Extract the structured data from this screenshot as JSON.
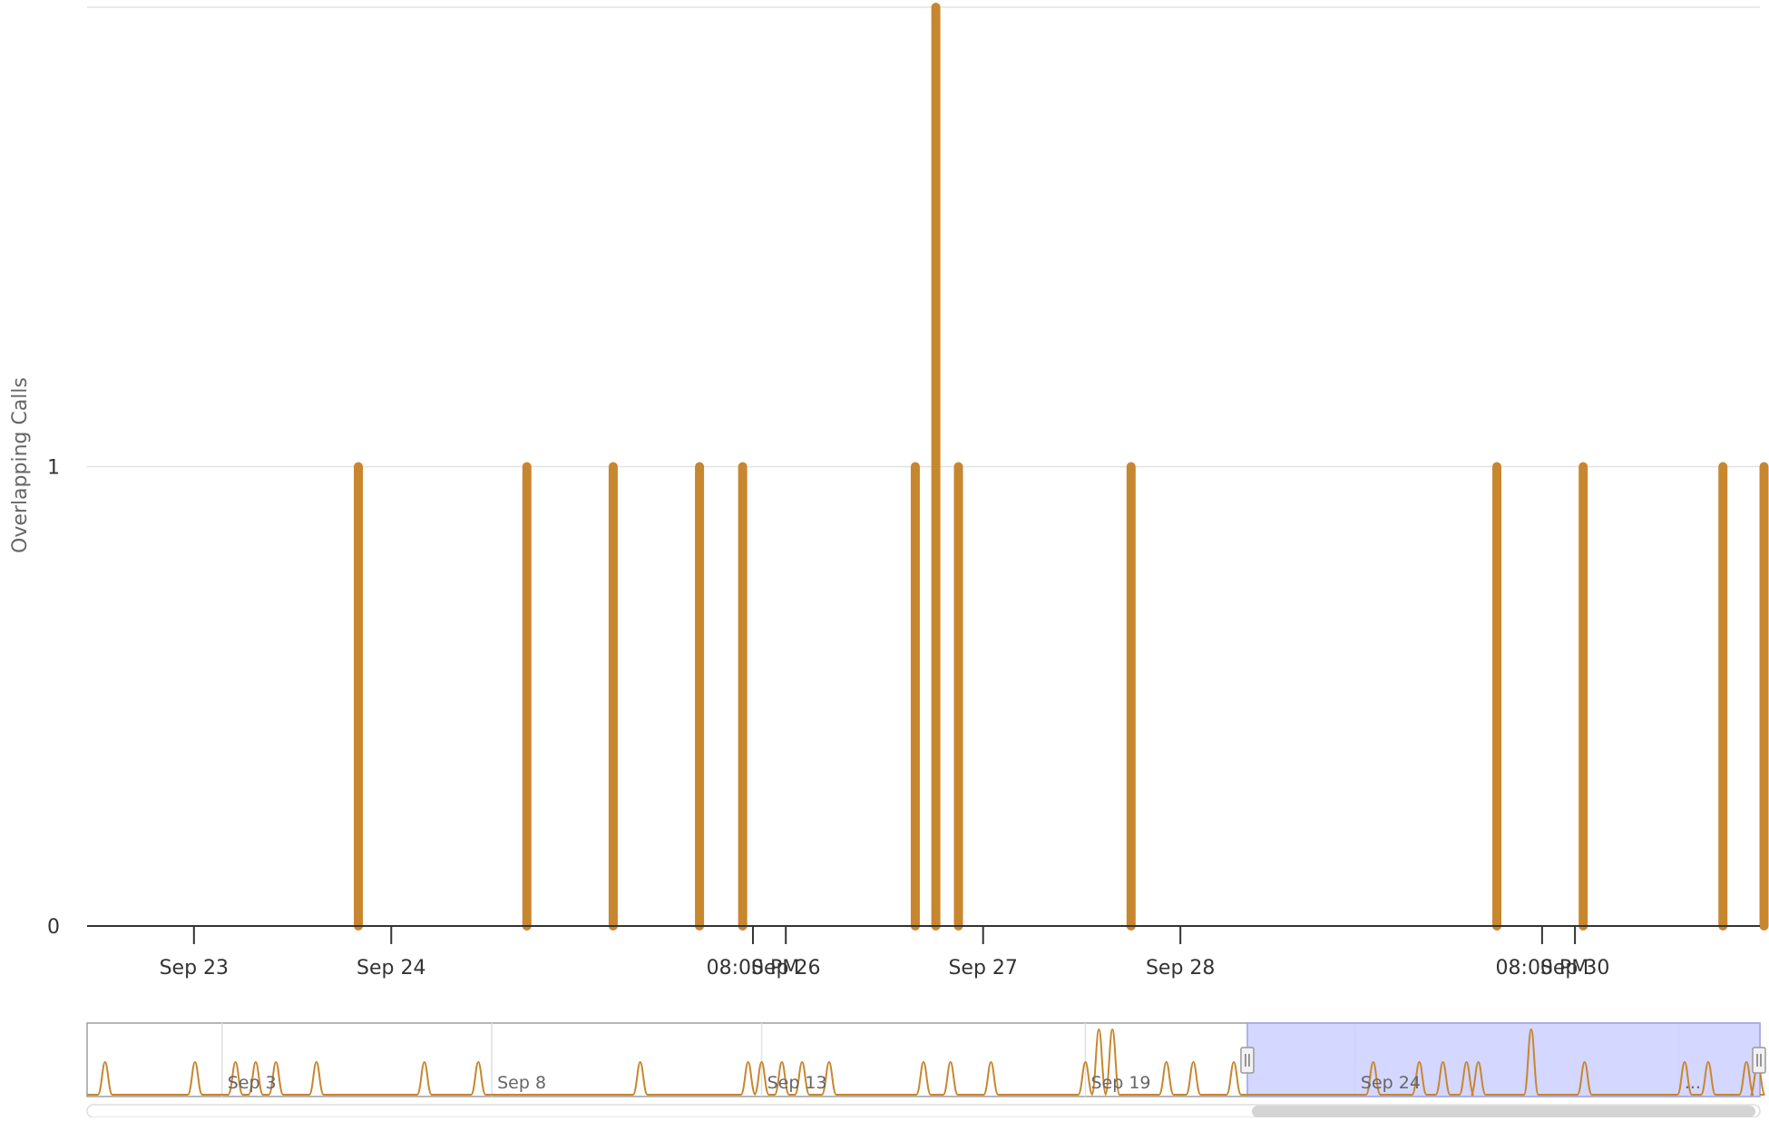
{
  "chart_data": {
    "type": "bar",
    "title": "",
    "xlabel": "",
    "ylabel": "Overlapping Calls",
    "ylim": [
      0,
      2
    ],
    "yticks": [
      0,
      1
    ],
    "grid": true,
    "color": "#c8862e",
    "xlim": [
      "2024-09-22T11:00",
      "2024-09-30T22:30"
    ],
    "xtick_labels": [
      {
        "at": "2024-09-23T00:00",
        "label": "Sep 23"
      },
      {
        "at": "2024-09-24T00:00",
        "label": "Sep 24"
      },
      {
        "at": "2024-09-25T20:00",
        "label": "08:00 PM"
      },
      {
        "at": "2024-09-26T00:00",
        "label": "Sep 26"
      },
      {
        "at": "2024-09-27T00:00",
        "label": "Sep 27"
      },
      {
        "at": "2024-09-28T00:00",
        "label": "Sep 28"
      },
      {
        "at": "2024-09-29T20:00",
        "label": "08:00 PM"
      },
      {
        "at": "2024-09-30T00:00",
        "label": "Sep 30"
      }
    ],
    "points": [
      {
        "x": "2024-09-23T20:00",
        "y": 1
      },
      {
        "x": "2024-09-24T16:30",
        "y": 1
      },
      {
        "x": "2024-09-25T03:00",
        "y": 1
      },
      {
        "x": "2024-09-25T13:30",
        "y": 1
      },
      {
        "x": "2024-09-25T18:45",
        "y": 1
      },
      {
        "x": "2024-09-26T15:45",
        "y": 1
      },
      {
        "x": "2024-09-26T18:15",
        "y": 2
      },
      {
        "x": "2024-09-26T21:00",
        "y": 1
      },
      {
        "x": "2024-09-27T18:00",
        "y": 1
      },
      {
        "x": "2024-09-29T14:30",
        "y": 1
      },
      {
        "x": "2024-09-30T01:00",
        "y": 1
      },
      {
        "x": "2024-09-30T18:00",
        "y": 1
      },
      {
        "x": "2024-09-30T23:00",
        "y": 1
      }
    ],
    "navigator": {
      "xlim": [
        "2024-08-31T00:00",
        "2024-09-30T23:59"
      ],
      "labels": [
        {
          "at": "2024-09-02T12:00",
          "label": "Sep 3"
        },
        {
          "at": "2024-09-07T12:00",
          "label": "Sep 8"
        },
        {
          "at": "2024-09-12T12:00",
          "label": "Sep 13"
        },
        {
          "at": "2024-09-18T12:00",
          "label": "Sep 19"
        },
        {
          "at": "2024-09-23T12:00",
          "label": "Sep 24"
        },
        {
          "at": "2024-09-29T12:00",
          "label": "..."
        }
      ],
      "selected_range": [
        "2024-09-21T12:00",
        "2024-09-30T23:59"
      ],
      "selection_color": "#ccd0ff",
      "peaks": [
        {
          "x": "2024-08-31T08:00",
          "y": 1
        },
        {
          "x": "2024-09-02T00:00",
          "y": 1
        },
        {
          "x": "2024-09-02T18:00",
          "y": 1
        },
        {
          "x": "2024-09-03T03:00",
          "y": 1
        },
        {
          "x": "2024-09-03T12:00",
          "y": 1
        },
        {
          "x": "2024-09-04T06:00",
          "y": 1
        },
        {
          "x": "2024-09-06T06:00",
          "y": 1
        },
        {
          "x": "2024-09-07T06:00",
          "y": 1
        },
        {
          "x": "2024-09-10T06:00",
          "y": 1
        },
        {
          "x": "2024-09-12T06:00",
          "y": 1
        },
        {
          "x": "2024-09-12T12:00",
          "y": 1
        },
        {
          "x": "2024-09-12T21:00",
          "y": 1
        },
        {
          "x": "2024-09-13T06:00",
          "y": 1
        },
        {
          "x": "2024-09-13T18:00",
          "y": 1
        },
        {
          "x": "2024-09-15T12:00",
          "y": 1
        },
        {
          "x": "2024-09-16T00:00",
          "y": 1
        },
        {
          "x": "2024-09-16T18:00",
          "y": 1
        },
        {
          "x": "2024-09-18T12:00",
          "y": 1
        },
        {
          "x": "2024-09-18T18:00",
          "y": 2
        },
        {
          "x": "2024-09-19T00:00",
          "y": 2
        },
        {
          "x": "2024-09-20T00:00",
          "y": 1
        },
        {
          "x": "2024-09-20T12:00",
          "y": 1
        },
        {
          "x": "2024-09-21T06:00",
          "y": 1
        },
        {
          "x": "2024-09-23T20:00",
          "y": 1
        },
        {
          "x": "2024-09-24T16:30",
          "y": 1
        },
        {
          "x": "2024-09-25T03:00",
          "y": 1
        },
        {
          "x": "2024-09-25T13:30",
          "y": 1
        },
        {
          "x": "2024-09-25T18:45",
          "y": 1
        },
        {
          "x": "2024-09-26T18:15",
          "y": 2
        },
        {
          "x": "2024-09-27T18:00",
          "y": 1
        },
        {
          "x": "2024-09-29T14:30",
          "y": 1
        },
        {
          "x": "2024-09-30T01:00",
          "y": 1
        },
        {
          "x": "2024-09-30T18:00",
          "y": 1
        },
        {
          "x": "2024-09-30T23:00",
          "y": 1
        }
      ]
    }
  }
}
